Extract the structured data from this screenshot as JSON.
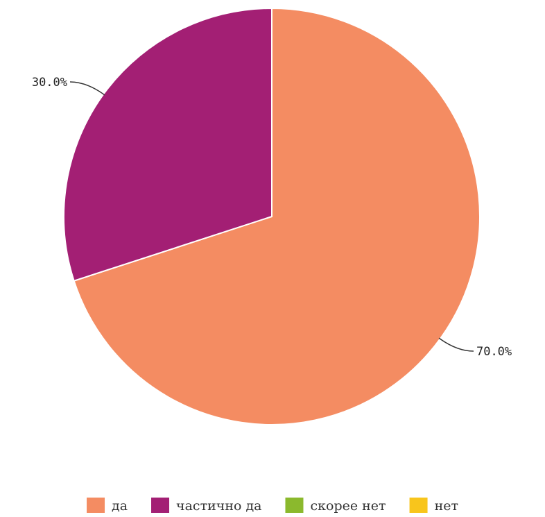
{
  "chart_data": {
    "type": "pie",
    "categories": [
      "да",
      "частично да",
      "скорее нет",
      "нет"
    ],
    "values": [
      70.0,
      30.0,
      0.0,
      0.0
    ],
    "data_labels": [
      "70.0%",
      "30.0%",
      "",
      ""
    ],
    "colors": [
      "#f48c62",
      "#a31f74",
      "#8bb92d",
      "#f8c51c"
    ],
    "legend_position": "bottom"
  }
}
